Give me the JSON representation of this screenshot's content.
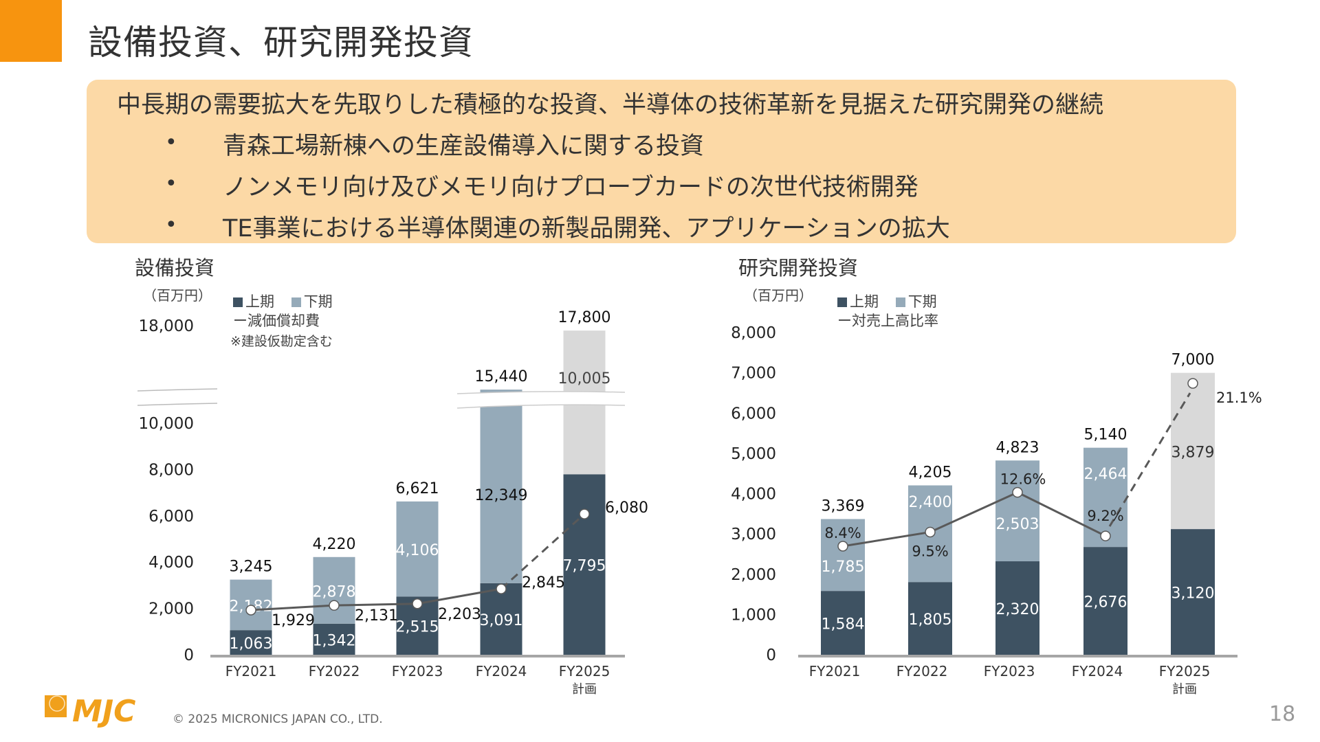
{
  "header": {
    "title": "設備投資、研究開発投資",
    "accent_color": "#f7940f"
  },
  "banner": {
    "headline": "中長期の需要拡大を先取りした積極的な投資、半導体の技術革新を見据えた研究開発の継続",
    "bullet_symbol": "•",
    "bullets": [
      "青森工場新棟への生産設備導入に関する投資",
      "ノンメモリ向け及びメモリ向けプローブカードの次世代技術開発",
      "TE事業における半導体関連の新製品開発、アプリケーションの拡大"
    ],
    "color": "#fcd9a6"
  },
  "colors": {
    "first_half": "#3e5262",
    "second_half": "#95aab9",
    "plan_second_half": "#d9d9d9",
    "line": "#595959"
  },
  "chart_data": [
    {
      "type": "bar",
      "stacked": true,
      "title": "設備投資",
      "unit": "（百万円）",
      "legend": {
        "first_half": "上期",
        "second_half": "下期",
        "line": "ー減価償却費",
        "note": "※建設仮勘定含む"
      },
      "categories": [
        "FY2021",
        "FY2022",
        "FY2023",
        "FY2024",
        "FY2025"
      ],
      "category_sub": [
        "",
        "",
        "",
        "",
        "計画"
      ],
      "yticks": [
        "0",
        "2,000",
        "4,000",
        "6,000",
        "8,000",
        "10,000",
        "18,000"
      ],
      "ylim": [
        0,
        18000
      ],
      "axis_break": [
        10000,
        15000
      ],
      "series": [
        {
          "name": "上期",
          "values": [
            1063,
            1342,
            2515,
            3091,
            7795
          ],
          "labels": [
            "1,063",
            "1,342",
            "2,515",
            "3,091",
            "7,795"
          ]
        },
        {
          "name": "下期",
          "values": [
            2182,
            2878,
            4106,
            12349,
            10005
          ],
          "labels": [
            "2,182",
            "2,878",
            "4,106",
            "12,349",
            "10,005"
          ]
        },
        {
          "name": "減価償却費",
          "type": "line",
          "values": [
            1929,
            2131,
            2203,
            2845,
            6080
          ],
          "labels": [
            "1,929",
            "2,131",
            "2,203",
            "2,845",
            "6,080"
          ],
          "dashed_last_segment": true
        }
      ],
      "totals": [
        3245,
        4220,
        6621,
        15440,
        17800
      ],
      "total_labels": [
        "3,245",
        "4,220",
        "6,621",
        "15,440",
        "17,800"
      ]
    },
    {
      "type": "bar",
      "stacked": true,
      "title": "研究開発投資",
      "unit": "（百万円）",
      "legend": {
        "first_half": "上期",
        "second_half": "下期",
        "line": "ー対売上高比率"
      },
      "categories": [
        "FY2021",
        "FY2022",
        "FY2023",
        "FY2024",
        "FY2025"
      ],
      "category_sub": [
        "",
        "",
        "",
        "",
        "計画"
      ],
      "yticks": [
        "0",
        "1,000",
        "2,000",
        "3,000",
        "4,000",
        "5,000",
        "6,000",
        "7,000",
        "8,000"
      ],
      "ylim": [
        0,
        8000
      ],
      "series": [
        {
          "name": "上期",
          "values": [
            1584,
            1805,
            2320,
            2676,
            3120
          ],
          "labels": [
            "1,584",
            "1,805",
            "2,320",
            "2,676",
            "3,120"
          ]
        },
        {
          "name": "下期",
          "values": [
            1785,
            2400,
            2503,
            2464,
            3879
          ],
          "labels": [
            "1,785",
            "2,400",
            "2,503",
            "2,464",
            "3,879"
          ]
        },
        {
          "name": "対売上高比率",
          "type": "line",
          "values": [
            8.4,
            9.5,
            12.6,
            9.2,
            21.1
          ],
          "labels": [
            "8.4%",
            "9.5%",
            "12.6%",
            "9.2%",
            "21.1%"
          ],
          "dashed_last_segment": true
        }
      ],
      "totals": [
        3369,
        4205,
        4823,
        5140,
        7000
      ],
      "total_labels": [
        "3,369",
        "4,205",
        "4,823",
        "5,140",
        "7,000"
      ]
    }
  ],
  "footer": {
    "logo_text": "MJC",
    "copyright": "© 2025 MICRONICS JAPAN CO., LTD.",
    "page_number": "18"
  }
}
